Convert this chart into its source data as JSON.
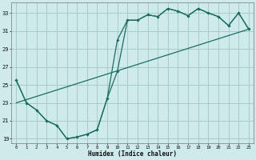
{
  "title": "",
  "xlabel": "Humidex (Indice chaleur)",
  "bg_color": "#ceeaea",
  "grid_color": "#aacaca",
  "line_color": "#1a6e5e",
  "xlim": [
    -0.5,
    23.5
  ],
  "ylim": [
    18.5,
    34.2
  ],
  "yticks": [
    19,
    21,
    23,
    25,
    27,
    29,
    31,
    33
  ],
  "xticks": [
    0,
    1,
    2,
    3,
    4,
    5,
    6,
    7,
    8,
    9,
    10,
    11,
    12,
    13,
    14,
    15,
    16,
    17,
    18,
    19,
    20,
    21,
    22,
    23
  ],
  "line1_x": [
    0,
    1,
    2,
    3,
    4,
    5,
    6,
    7,
    8,
    9,
    10,
    11,
    12,
    13,
    14,
    15,
    16,
    17,
    18,
    19,
    20,
    21,
    22,
    23
  ],
  "line1_y": [
    25.5,
    23.0,
    22.2,
    21.0,
    20.5,
    19.0,
    19.2,
    19.5,
    20.0,
    23.5,
    30.0,
    32.2,
    32.2,
    32.8,
    32.6,
    33.5,
    33.2,
    32.7,
    33.5,
    33.0,
    32.6,
    31.6,
    33.0,
    31.2
  ],
  "line2_x": [
    0,
    1,
    2,
    3,
    4,
    5,
    6,
    7,
    8,
    9,
    10,
    11,
    12,
    13,
    14,
    15,
    16,
    17,
    18,
    19,
    20,
    21,
    22,
    23
  ],
  "line2_y": [
    25.5,
    23.0,
    22.2,
    21.0,
    20.5,
    19.0,
    19.2,
    19.5,
    20.0,
    23.5,
    26.5,
    32.2,
    32.2,
    32.8,
    32.6,
    33.5,
    33.2,
    32.7,
    33.5,
    33.0,
    32.6,
    31.6,
    33.0,
    31.2
  ],
  "line3_x": [
    0,
    23
  ],
  "line3_y": [
    23.0,
    31.2
  ]
}
